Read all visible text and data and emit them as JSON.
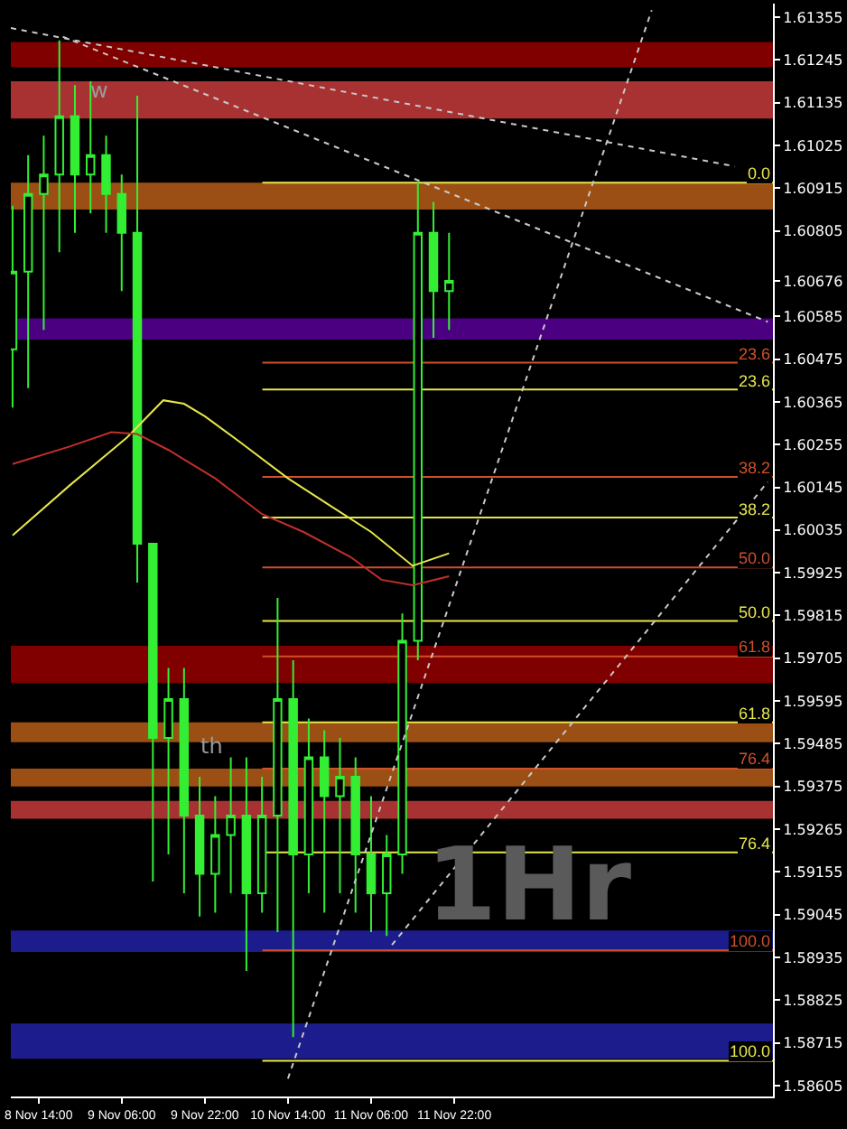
{
  "chart_data": {
    "type": "candlestick",
    "series": [
      {
        "color": "#33ee33",
        "x": [
          "--11-08T09:00",
          "--11-08T12:00",
          "--11-08T15:00",
          "--11-08T18:00",
          "--11-08T21:00",
          "--11-09T00:00",
          "--11-09T03:00",
          "--11-09T06:00",
          "--11-09T09:00",
          "--11-09T12:00",
          "--11-09T15:00",
          "--11-09T18:00",
          "--11-09T21:00",
          "--11-10T00:00",
          "--11-10T03:00",
          "--11-10T06:00",
          "--11-10T09:00",
          "--11-10T12:00",
          "--11-10T15:00",
          "--11-10T18:00",
          "--11-10T21:00",
          "--11-11T00:00",
          "--11-11T03:00",
          "--11-11T06:00",
          "--11-11T09:00",
          "--11-11T12:00",
          "--11-11T15:00",
          "--11-11T18:00",
          "--11-11T21:00"
        ],
        "ohlc": [
          [
            1.605,
            1.6087,
            1.6035,
            1.607
          ],
          [
            1.607,
            1.61,
            1.604,
            1.609
          ],
          [
            1.609,
            1.6105,
            1.6055,
            1.6095
          ],
          [
            1.6095,
            1.61295,
            1.6075,
            1.611
          ],
          [
            1.611,
            1.6118,
            1.608,
            1.6095
          ],
          [
            1.6095,
            1.6119,
            1.6085,
            1.61
          ],
          [
            1.61,
            1.6105,
            1.608,
            1.609
          ],
          [
            1.609,
            1.6095,
            1.6065,
            1.608
          ],
          [
            1.608,
            1.61153,
            1.599,
            1.6
          ],
          [
            1.6,
            1.6,
            1.5913,
            1.595
          ],
          [
            1.595,
            1.5968,
            1.592,
            1.596
          ],
          [
            1.596,
            1.5968,
            1.591,
            1.593
          ],
          [
            1.593,
            1.594,
            1.5904,
            1.5915
          ],
          [
            1.5915,
            1.5935,
            1.5905,
            1.5925
          ],
          [
            1.5925,
            1.5945,
            1.591,
            1.593
          ],
          [
            1.593,
            1.5945,
            1.589,
            1.591
          ],
          [
            1.591,
            1.594,
            1.5905,
            1.593
          ],
          [
            1.593,
            1.5986,
            1.59,
            1.596
          ],
          [
            1.596,
            1.597,
            1.5873,
            1.592
          ],
          [
            1.592,
            1.5955,
            1.591,
            1.5945
          ],
          [
            1.5945,
            1.5952,
            1.5905,
            1.5935
          ],
          [
            1.5935,
            1.595,
            1.591,
            1.594
          ],
          [
            1.594,
            1.5945,
            1.5905,
            1.592
          ],
          [
            1.592,
            1.5935,
            1.59,
            1.591
          ],
          [
            1.591,
            1.5925,
            1.5899,
            1.592
          ],
          [
            1.592,
            1.5982,
            1.5915,
            1.5975
          ],
          [
            1.5975,
            1.6093,
            1.597,
            1.608
          ],
          [
            1.608,
            1.6088,
            1.6053,
            1.6065
          ],
          [
            1.6065,
            1.608,
            1.6055,
            1.60676
          ]
        ]
      },
      {
        "type": "line",
        "color": "#e6e64c",
        "line_style": "solid",
        "x": [
          "--11-08T09:00",
          "--11-08T20:00",
          "--11-09T07:00",
          "--11-09T14:00",
          "--11-09T18:00",
          "--11-09T22:00",
          "--11-10T05:00",
          "--11-10T14:00",
          "--11-10T23:00",
          "--11-11T06:00",
          "--11-11T14:00",
          "--11-11T21:00"
        ],
        "values": [
          1.60021,
          1.6015,
          1.60273,
          1.60369,
          1.6036,
          1.60328,
          1.60259,
          1.60168,
          1.6009,
          1.6003,
          1.59943,
          1.59975
        ]
      },
      {
        "type": "line",
        "color": "#c0302a",
        "line_style": "solid",
        "x": [
          "--11-08T09:00",
          "--11-08T20:00",
          "--11-09T04:00",
          "--11-09T09:00",
          "--11-09T15:00",
          "--11-10T00:00",
          "--11-10T09:00",
          "--11-10T17:00",
          "--11-11T02:00",
          "--11-11T08:00",
          "--11-11T14:00",
          "--11-11T21:00"
        ],
        "values": [
          1.60205,
          1.6025,
          1.60287,
          1.60282,
          1.60241,
          1.60168,
          1.60076,
          1.6003,
          1.59966,
          1.59907,
          1.59893,
          1.59916
        ]
      },
      {
        "type": "line",
        "color": "#c8c8c8",
        "line_style": "dotted",
        "x": [
          "--11-08T08:40",
          "--11-14T04:00"
        ],
        "values": [
          1.61327,
          1.60971
        ]
      },
      {
        "type": "line",
        "color": "#c8c8c8",
        "line_style": "dotted",
        "x": [
          "--11-08T18:40",
          "--11-14T10:20"
        ],
        "values": [
          1.61305,
          1.60571
        ]
      },
      {
        "type": "line",
        "color": "#c8c8c8",
        "line_style": "dotted",
        "x": [
          "--11-10T14:00",
          "--11-13T12:00"
        ],
        "values": [
          1.58623,
          1.61373
        ]
      },
      {
        "type": "line",
        "color": "#c8c8c8",
        "line_style": "dotted",
        "x": [
          "--11-11T10:00",
          "--11-14T10:20"
        ],
        "values": [
          1.58967,
          1.60159
        ]
      }
    ],
    "xlim": [
      "--11-08T08:40",
      "--11-14T11:20"
    ],
    "xticks": [
      {
        "value": "--11-08T14:00",
        "label": "8 Nov 14:00"
      },
      {
        "value": "--11-09T06:00",
        "label": "9 Nov 06:00"
      },
      {
        "value": "--11-09T22:00",
        "label": "9 Nov 22:00"
      },
      {
        "value": "--11-10T14:00",
        "label": "10 Nov 14:00"
      },
      {
        "value": "--11-11T06:00",
        "label": "11 Nov 06:00"
      },
      {
        "value": "--11-11T22:00",
        "label": "11 Nov 22:00"
      }
    ],
    "ylim": [
      1.58577,
      1.6139
    ],
    "yticks": [
      1.58605,
      1.58715,
      1.58825,
      1.58935,
      1.59045,
      1.59155,
      1.59265,
      1.59375,
      1.59485,
      1.59595,
      1.59705,
      1.59815,
      1.59925,
      1.60035,
      1.60145,
      1.60255,
      1.60365,
      1.60475,
      1.60585,
      1.60676,
      1.60805,
      1.60915,
      1.61025,
      1.61135,
      1.61245,
      1.61355
    ],
    "bands": [
      {
        "axis": "y",
        "from": 1.61226,
        "to": 1.61291,
        "color": "#800000"
      },
      {
        "axis": "y",
        "from": 1.61094,
        "to": 1.6119,
        "color": "#a83232"
      },
      {
        "axis": "y",
        "from": 1.6086,
        "to": 1.60929,
        "color": "#9c4f14"
      },
      {
        "axis": "y",
        "from": 1.60525,
        "to": 1.6058,
        "color": "#4b0082"
      },
      {
        "axis": "y",
        "from": 1.59641,
        "to": 1.59737,
        "color": "#800000"
      },
      {
        "axis": "y",
        "from": 1.59489,
        "to": 1.5954,
        "color": "#9c4f14"
      },
      {
        "axis": "y",
        "from": 1.59375,
        "to": 1.59421,
        "color": "#9c4f14"
      },
      {
        "axis": "y",
        "from": 1.59292,
        "to": 1.59338,
        "color": "#a83232"
      },
      {
        "axis": "y",
        "from": 1.58949,
        "to": 1.59004,
        "color": "#1c1c8c"
      },
      {
        "axis": "y",
        "from": 1.58674,
        "to": 1.58765,
        "color": "#1c1c8c"
      }
    ],
    "ref_lines": [
      {
        "axis": "y",
        "value": 1.60929,
        "color": "#e6e64c"
      },
      {
        "axis": "y",
        "value": 1.60397,
        "color": "#e6e64c"
      },
      {
        "axis": "y",
        "value": 1.60067,
        "color": "#e6e64c"
      },
      {
        "axis": "y",
        "value": 1.59801,
        "color": "#e6e64c"
      },
      {
        "axis": "y",
        "value": 1.5954,
        "color": "#e6e64c"
      },
      {
        "axis": "y",
        "value": 1.59205,
        "color": "#e6e64c"
      },
      {
        "axis": "y",
        "value": 1.58669,
        "color": "#e6e64c"
      },
      {
        "axis": "y",
        "value": 1.60466,
        "color": "#d0502a"
      },
      {
        "axis": "y",
        "value": 1.60172,
        "color": "#d0502a"
      },
      {
        "axis": "y",
        "value": 1.59939,
        "color": "#d0502a"
      },
      {
        "axis": "y",
        "value": 1.5971,
        "color": "#d0502a"
      },
      {
        "axis": "y",
        "value": 1.59421,
        "color": "#d0502a"
      },
      {
        "axis": "y",
        "value": 1.58953,
        "color": "#d0502a"
      }
    ],
    "annotations": [
      "w",
      "th",
      "1Hr",
      {
        "text": "0.0",
        "y": 1.60929
      },
      {
        "text": "23.6",
        "y": 1.60397
      },
      {
        "text": "38.2",
        "y": 1.60067
      },
      {
        "text": "50.0",
        "y": 1.59801
      },
      {
        "text": "61.8",
        "y": 1.5954
      },
      {
        "text": "76.4",
        "y": 1.59205
      },
      {
        "text": "100.0",
        "y": 1.58669
      },
      {
        "text": "23.6",
        "y": 1.60466
      },
      {
        "text": "38.2",
        "y": 1.60172
      },
      {
        "text": "50.0",
        "y": 1.59939
      },
      {
        "text": "61.8",
        "y": 1.5971
      },
      {
        "text": "76.4",
        "y": 1.59421
      },
      {
        "text": "100.0",
        "y": 1.58953
      }
    ],
    "grid": false
  }
}
